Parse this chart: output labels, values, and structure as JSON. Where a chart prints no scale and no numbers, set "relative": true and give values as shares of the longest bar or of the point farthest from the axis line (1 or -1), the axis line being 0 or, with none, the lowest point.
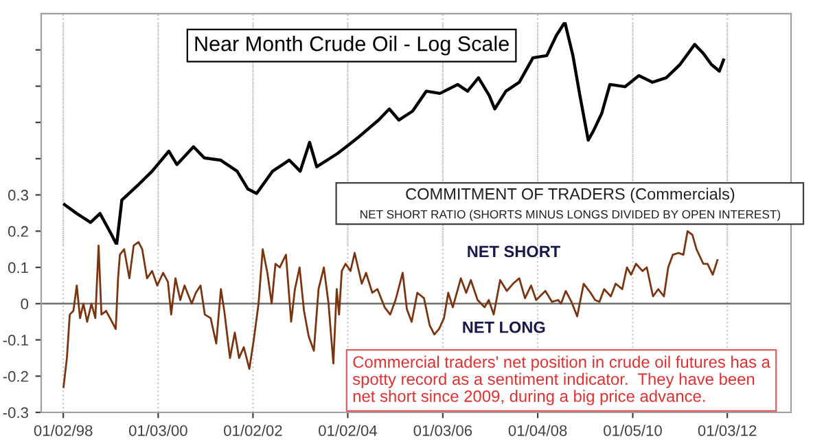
{
  "chart_data": [
    {
      "type": "line",
      "title": "Near Month Crude Oil - Log Scale",
      "relative": true,
      "tick_labels": false,
      "xlim": [
        "1997-07-16",
        "2013-05-08"
      ],
      "grid": "x",
      "xticks": [
        {
          "value": "1998-01-02",
          "label": null
        },
        {
          "value": "2000-01-03",
          "label": null
        },
        {
          "value": "2002-01-02",
          "label": null
        },
        {
          "value": "2004-01-02",
          "label": null
        },
        {
          "value": "2006-01-03",
          "label": null
        },
        {
          "value": "2008-01-04",
          "label": null
        },
        {
          "value": "2010-01-05",
          "label": null
        },
        {
          "value": "2012-01-03",
          "label": null
        }
      ],
      "series": [
        {
          "color": "#000000",
          "x": [
            "1998-01-12",
            "1998-04-16",
            "1998-07-31",
            "1998-10-12",
            "1999-01-04",
            "1999-02-17",
            "1999-03-29",
            "1999-08-04",
            "1999-11-17",
            "2000-03-25",
            "2000-05-26",
            "2000-10-01",
            "2000-12-23",
            "2001-04-27",
            "2001-09-02",
            "2001-11-24",
            "2002-01-30",
            "2002-06-02",
            "2002-10-09",
            "2003-01-01",
            "2003-03-14",
            "2003-05-08",
            "2003-10-16",
            "2004-03-18",
            "2004-08-26",
            "2004-11-17",
            "2005-01-30",
            "2005-05-15",
            "2005-08-29",
            "2005-12-12",
            "2006-04-27",
            "2006-07-13",
            "2006-10-05",
            "2006-12-27",
            "2007-02-07",
            "2007-05-04",
            "2007-08-15",
            "2007-11-28",
            "2008-03-14",
            "2008-05-26",
            "2008-07-31",
            "2008-10-01",
            "2008-11-24",
            "2009-01-27",
            "2009-03-07",
            "2009-05-11",
            "2009-07-13",
            "2009-11-06",
            "2010-02-21",
            "2010-06-06",
            "2010-09-20",
            "2011-01-04",
            "2011-04-27",
            "2011-07-02",
            "2011-09-02",
            "2011-11-03",
            "2011-12-05"
          ],
          "values": [
            0.18,
            0.14,
            0.1,
            0.14,
            0.05,
            0.0,
            0.2,
            0.27,
            0.33,
            0.42,
            0.36,
            0.44,
            0.39,
            0.38,
            0.33,
            0.25,
            0.23,
            0.33,
            0.38,
            0.33,
            0.46,
            0.35,
            0.41,
            0.48,
            0.56,
            0.61,
            0.56,
            0.6,
            0.69,
            0.68,
            0.72,
            0.69,
            0.75,
            0.67,
            0.61,
            0.69,
            0.73,
            0.84,
            0.85,
            0.94,
            1.0,
            0.85,
            0.67,
            0.47,
            0.51,
            0.59,
            0.72,
            0.71,
            0.76,
            0.73,
            0.75,
            0.81,
            0.9,
            0.86,
            0.81,
            0.78,
            0.83
          ]
        }
      ]
    },
    {
      "type": "line",
      "title": "COMMITMENT OF TRADERS (Commercials)",
      "subtitle": "NET SHORT RATIO (SHORTS MINUS LONGS DIVIDED BY OPEN INTEREST)",
      "xlim": [
        "1997-07-16",
        "2013-05-08"
      ],
      "ylim": [
        -0.3,
        0.8
      ],
      "grid": "x",
      "xticks": [
        {
          "value": "1998-01-02",
          "label": "01/02/98"
        },
        {
          "value": "2000-01-03",
          "label": "01/03/00"
        },
        {
          "value": "2002-01-02",
          "label": "01/02/02"
        },
        {
          "value": "2004-01-02",
          "label": "01/02/04"
        },
        {
          "value": "2006-01-03",
          "label": "01/03/06"
        },
        {
          "value": "2008-01-04",
          "label": "01/04/08"
        },
        {
          "value": "2010-01-05",
          "label": "01/05/10"
        },
        {
          "value": "2012-01-03",
          "label": "01/03/12"
        }
      ],
      "yticks": [
        {
          "value": -0.3,
          "label": "-0.3"
        },
        {
          "value": -0.2,
          "label": "-0.2"
        },
        {
          "value": -0.1,
          "label": "-0.1"
        },
        0,
        0.1,
        0.2,
        0.3,
        {
          "value": 0.4,
          "label": null
        },
        {
          "value": 0.5,
          "label": null
        },
        {
          "value": 0.6,
          "label": null
        },
        {
          "value": 0.7,
          "label": null
        }
      ],
      "ref_lines": [
        {
          "axis": "y",
          "value": 0,
          "color": "#707070"
        }
      ],
      "annotations": [
        "NET SHORT",
        "NET LONG",
        "Commercial traders' net position in crude oil futures has a\nspotty record as a sentiment indicator.  They have been\nnet short since 2009, during a big price advance."
      ],
      "series": [
        {
          "color": "#7a3510",
          "x": [
            "1998-01-04",
            "1998-01-30",
            "1998-02-21",
            "1998-03-21",
            "1998-04-16",
            "1998-05-11",
            "1998-06-06",
            "1998-07-05",
            "1998-08-07",
            "1998-09-06",
            "1998-10-01",
            "1998-10-23",
            "1998-11-28",
            "1999-01-12",
            "1999-02-10",
            "1999-02-28",
            "1999-03-14",
            "1999-04-16",
            "1999-05-26",
            "1999-06-28",
            "1999-08-04",
            "1999-09-02",
            "1999-10-09",
            "1999-11-17",
            "1999-12-27",
            "2000-02-10",
            "2000-03-18",
            "2000-04-12",
            "2000-05-15",
            "2000-06-21",
            "2000-07-24",
            "2000-09-17",
            "2000-10-19",
            "2000-11-24",
            "2000-12-27",
            "2001-02-10",
            "2001-03-25",
            "2001-04-30",
            "2001-05-26",
            "2001-07-09",
            "2001-08-15",
            "2001-09-17",
            "2001-10-23",
            "2001-12-05",
            "2002-01-08",
            "2002-02-14",
            "2002-03-18",
            "2002-04-23",
            "2002-05-26",
            "2002-06-24",
            "2002-07-27",
            "2002-09-13",
            "2002-10-23",
            "2002-11-21",
            "2002-12-27",
            "2003-01-30",
            "2003-03-07",
            "2003-04-16",
            "2003-05-22",
            "2003-07-02",
            "2003-08-07",
            "2003-09-13",
            "2003-10-09",
            "2003-10-27",
            "2003-11-17",
            "2003-12-16",
            "2004-01-23",
            "2004-02-24",
            "2004-04-19",
            "2004-05-22",
            "2004-07-09",
            "2004-08-18",
            "2004-10-12",
            "2004-11-24",
            "2005-01-04",
            "2005-02-28",
            "2005-04-01",
            "2005-05-08",
            "2005-06-21",
            "2005-08-11",
            "2005-09-24",
            "2005-10-30",
            "2005-12-05",
            "2006-01-12",
            "2006-02-14",
            "2006-03-21",
            "2006-05-22",
            "2006-07-02",
            "2006-08-07",
            "2006-09-28",
            "2006-11-21",
            "2006-12-23",
            "2007-01-30",
            "2007-03-21",
            "2007-05-11",
            "2007-06-28",
            "2007-08-15",
            "2007-09-28",
            "2007-11-14",
            "2007-12-23",
            "2008-03-03",
            "2008-04-23",
            "2008-06-10",
            "2008-07-02",
            "2008-08-07",
            "2008-09-20",
            "2008-11-03",
            "2008-12-23",
            "2009-02-14",
            "2009-03-21",
            "2009-04-23",
            "2009-05-30",
            "2009-07-20",
            "2009-08-26",
            "2009-10-16",
            "2009-11-21",
            "2009-12-23",
            "2010-01-30",
            "2010-03-21",
            "2010-04-23",
            "2010-06-10",
            "2010-07-20",
            "2010-09-02",
            "2010-10-05",
            "2010-11-10",
            "2010-12-23",
            "2011-01-30",
            "2011-03-03",
            "2011-04-09",
            "2011-05-11",
            "2011-07-02",
            "2011-08-04",
            "2011-09-13",
            "2011-10-19"
          ],
          "values": [
            -0.23,
            -0.15,
            -0.03,
            -0.02,
            0.05,
            -0.04,
            0.0,
            -0.05,
            0.0,
            -0.04,
            0.16,
            -0.03,
            -0.02,
            -0.05,
            -0.07,
            0.07,
            0.135,
            0.15,
            0.07,
            0.16,
            0.17,
            0.15,
            0.07,
            0.09,
            0.05,
            0.085,
            0.06,
            -0.03,
            0.07,
            0.01,
            0.05,
            0.0,
            0.03,
            0.05,
            -0.03,
            -0.04,
            -0.11,
            0.04,
            -0.02,
            -0.15,
            -0.08,
            -0.15,
            -0.12,
            -0.18,
            -0.1,
            0.0,
            0.15,
            0.085,
            0.0,
            0.11,
            0.1,
            0.135,
            -0.05,
            0.04,
            0.1,
            -0.02,
            -0.09,
            -0.13,
            0.04,
            0.1,
            0.0,
            -0.165,
            0.04,
            -0.03,
            0.09,
            0.11,
            0.09,
            0.14,
            0.055,
            0.085,
            0.03,
            0.04,
            -0.01,
            -0.03,
            0.01,
            0.085,
            -0.015,
            -0.05,
            0.03,
            0.015,
            -0.06,
            -0.085,
            -0.07,
            -0.04,
            0.03,
            -0.01,
            0.07,
            0.03,
            0.065,
            0.01,
            -0.01,
            0.01,
            -0.03,
            0.065,
            0.035,
            0.055,
            0.07,
            0.015,
            0.05,
            0.01,
            0.035,
            0.005,
            0.01,
            0.0,
            0.035,
            0.005,
            -0.035,
            0.055,
            0.03,
            0.01,
            0.005,
            0.04,
            0.02,
            0.055,
            0.04,
            0.1,
            0.08,
            0.11,
            0.09,
            0.1,
            0.02,
            0.04,
            0.02,
            0.1,
            0.135,
            0.14,
            0.135,
            0.2,
            0.19,
            0.15,
            0.11,
            0.11,
            0.08,
            0.12
          ]
        }
      ]
    }
  ]
}
